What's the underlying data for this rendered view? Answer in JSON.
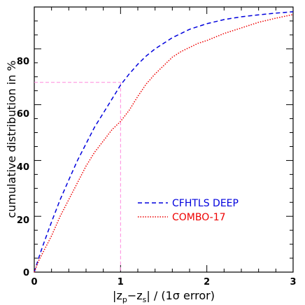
{
  "chart_data": {
    "type": "line",
    "xlabel": "|z_p−z_s| / (1σ error)",
    "ylabel": "cumulative distribution in %",
    "xlim": [
      0,
      3
    ],
    "ylim": [
      0,
      95
    ],
    "xticks_major": [
      0,
      1,
      2,
      3
    ],
    "xticks_minor_step": 0.2,
    "yticks_major": [
      0,
      20,
      40,
      60,
      80
    ],
    "yticks_minor_step": 5,
    "grid": false,
    "legend_position": "center-right",
    "series": [
      {
        "name": "CFHTLS DEEP",
        "color": "#0000dd",
        "style": "dashed",
        "x": [
          0,
          0.05,
          0.1,
          0.2,
          0.3,
          0.4,
          0.5,
          0.6,
          0.7,
          0.8,
          0.9,
          1.0,
          1.1,
          1.2,
          1.3,
          1.4,
          1.5,
          1.6,
          1.7,
          1.8,
          1.9,
          2.0,
          2.2,
          2.4,
          2.6,
          2.8,
          3.0
        ],
        "y": [
          0,
          5,
          9.5,
          18,
          26,
          33,
          40,
          46,
          52,
          57,
          62,
          67,
          71,
          74.5,
          77.5,
          80,
          82,
          84,
          85.5,
          87,
          88,
          89,
          90.5,
          91.5,
          92.2,
          92.8,
          93.3
        ]
      },
      {
        "name": "COMBO-17",
        "color": "#ee0000",
        "style": "dotted",
        "x": [
          0,
          0.05,
          0.1,
          0.2,
          0.3,
          0.4,
          0.5,
          0.6,
          0.7,
          0.8,
          0.9,
          1.0,
          1.1,
          1.2,
          1.3,
          1.4,
          1.5,
          1.6,
          1.7,
          1.8,
          1.9,
          2.0,
          2.2,
          2.4,
          2.6,
          2.8,
          3.0
        ],
        "y": [
          0,
          4,
          7,
          13,
          20,
          26,
          32,
          38,
          43,
          47,
          51,
          54,
          58,
          63,
          67.5,
          71,
          74,
          77,
          79,
          80.5,
          82,
          83,
          85.5,
          87.5,
          89.5,
          91,
          92.3
        ]
      }
    ],
    "annotations": [
      {
        "type": "reference-lines",
        "x": 1.0,
        "y": 68,
        "color": "#ff88dd",
        "style": "dashed"
      }
    ]
  },
  "text": {
    "ylabel": "cumulative distribution in %",
    "xlabel_parts": [
      "|z",
      "p",
      "−z",
      "s",
      "| / (1σ error)"
    ],
    "legend_1": "CFHTLS DEEP",
    "legend_2": "COMBO-17",
    "xtick_0": "0",
    "xtick_1": "1",
    "xtick_2": "2",
    "xtick_3": "3",
    "ytick_0": "0",
    "ytick_20": "20",
    "ytick_40": "40",
    "ytick_60": "60",
    "ytick_80": "80"
  }
}
